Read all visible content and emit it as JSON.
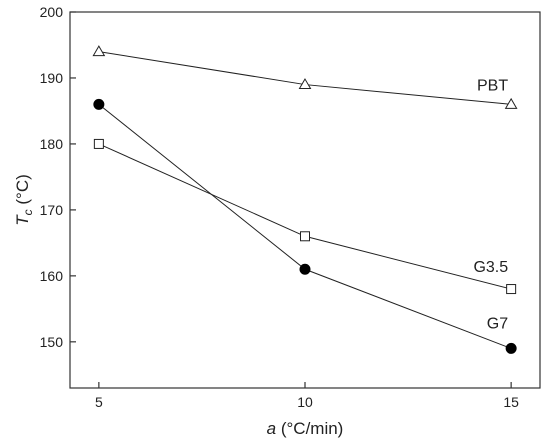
{
  "chart_data": {
    "type": "line",
    "x": [
      5,
      10,
      15
    ],
    "xlim": [
      4.3,
      15.7
    ],
    "ylim": [
      143,
      200
    ],
    "xticks": [
      "5",
      "10",
      "15"
    ],
    "yticks": [
      "150",
      "160",
      "170",
      "180",
      "190",
      "200"
    ],
    "xlabel": {
      "var": "a",
      "unit": " (°C/min)"
    },
    "ylabel": {
      "var": "T",
      "sub": "c",
      "unit": " (°C)"
    },
    "grid": false,
    "series": [
      {
        "name": "PBT",
        "marker": "open-triangle",
        "values": [
          194,
          189,
          186
        ]
      },
      {
        "name": "G3.5",
        "marker": "open-square",
        "values": [
          180,
          166,
          158
        ]
      },
      {
        "name": "G7",
        "marker": "filled-circle",
        "values": [
          186,
          161,
          149
        ]
      }
    ]
  }
}
